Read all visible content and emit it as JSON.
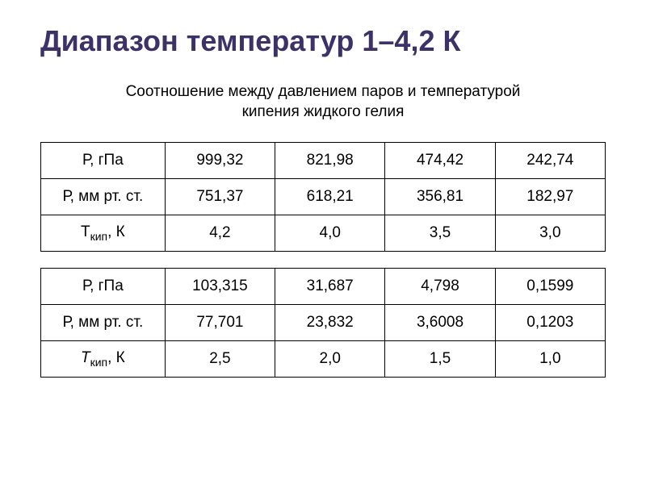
{
  "title": "Диапазон температур 1–4,2 К",
  "subtitle": "Соотношение между давлением паров и температурой кипения жидкого гелия",
  "table1": {
    "type": "table",
    "row_labels": {
      "p_gpa": "Р, гПа",
      "p_mm": "Р, мм рт. ст.",
      "t_pre": "Т",
      "t_sub": "кип",
      "t_post": ", К"
    },
    "rows": {
      "p_gpa": [
        "999,32",
        "821,98",
        "474,42",
        "242,74"
      ],
      "p_mm": [
        "751,37",
        "618,21",
        "356,81",
        "182,97"
      ],
      "t": [
        "4,2",
        "4,0",
        "3,5",
        "3,0"
      ]
    },
    "border_color": "#000000",
    "text_color": "#000000",
    "fontsize": 19
  },
  "table2": {
    "type": "table",
    "row_labels": {
      "p_gpa": "Р, гПа",
      "p_mm": "Р, мм рт. ст.",
      "t_pre": "Т",
      "t_sub": "кип",
      "t_post": ", К"
    },
    "rows": {
      "p_gpa": [
        "103,315",
        "31,687",
        "4,798",
        "0,1599"
      ],
      "p_mm": [
        "77,701",
        "23,832",
        "3,6008",
        "0,1203"
      ],
      "t": [
        "2,5",
        "2,0",
        "1,5",
        "1,0"
      ]
    },
    "border_color": "#000000",
    "text_color": "#000000",
    "fontsize": 19
  },
  "colors": {
    "title": "#3d3268",
    "text": "#000000",
    "background": "#ffffff"
  }
}
